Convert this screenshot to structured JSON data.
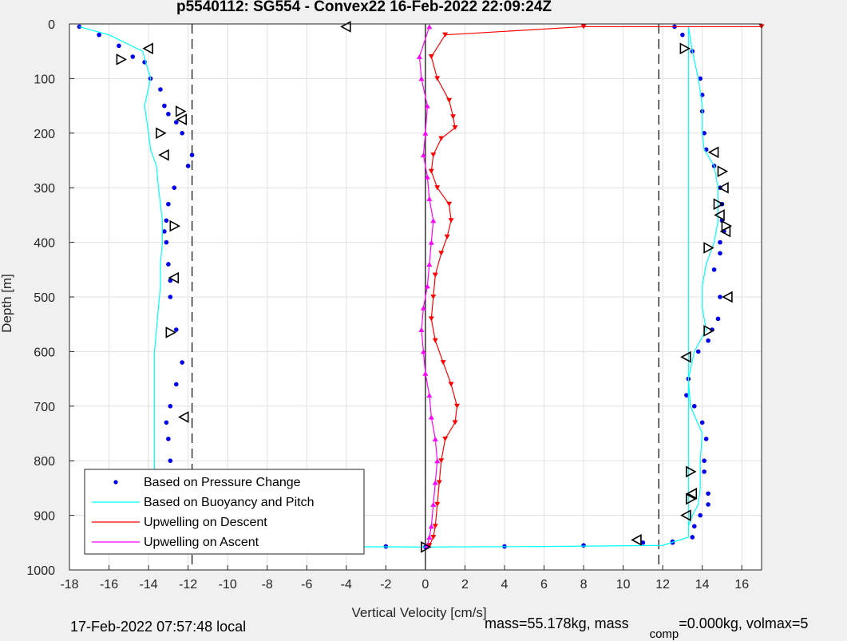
{
  "chart_data": {
    "type": "scatter",
    "title": "p5540112: SG554 - Convex22 16-Feb-2022 22:09:24Z",
    "xlabel": "Vertical Velocity [cm/s]",
    "ylabel": "Depth [m]",
    "xlim": [
      -18,
      17
    ],
    "ylim": [
      0,
      1000
    ],
    "y_reversed": true,
    "x_ticks": [
      -18,
      -16,
      -14,
      -12,
      -10,
      -8,
      -6,
      -4,
      -2,
      0,
      2,
      4,
      6,
      8,
      10,
      12,
      14,
      16
    ],
    "y_ticks": [
      0,
      100,
      200,
      300,
      400,
      500,
      600,
      700,
      800,
      900,
      1000
    ],
    "grid": true,
    "legend_position": "bottom-left",
    "reference_lines": [
      {
        "style": "dashed",
        "color": "#000000",
        "x": -11.8
      },
      {
        "style": "dashed",
        "color": "#000000",
        "x": 11.8
      },
      {
        "style": "solid",
        "color": "#000000",
        "x": 0
      }
    ],
    "series": [
      {
        "name": "Based on Pressure Change",
        "marker": "dot",
        "color": "#0000ee",
        "x": [
          -17.5,
          -16.5,
          -15.5,
          -14.8,
          -14.2,
          -13.9,
          -13.4,
          -13.2,
          -13.0,
          -12.6,
          -12.3,
          -11.8,
          -12.0,
          -12.7,
          -13.0,
          -13.1,
          -13.2,
          -13.1,
          -13.0,
          -12.9,
          -12.9,
          -12.6,
          -12.3,
          -12.6,
          -12.9,
          -13.1,
          -13.0,
          -12.9,
          -12.9,
          -12.9,
          -13.2,
          -14.0,
          -10.0,
          -6.0,
          -2.0,
          0.0,
          4.0,
          8.0,
          11.0,
          12.5,
          12.6,
          13.0,
          13.5,
          13.9,
          14.0,
          14.0,
          14.1,
          14.2,
          14.6,
          14.9,
          15.0,
          15.0,
          15.1,
          14.9,
          14.9,
          14.6,
          14.9,
          14.8,
          14.5,
          14.3,
          13.8,
          13.3,
          13.2,
          13.6,
          14.0,
          14.2,
          14.1,
          14.1,
          14.3,
          14.3,
          13.9,
          13.6,
          13.5,
          12.5
        ],
        "y": [
          5,
          20,
          40,
          60,
          70,
          100,
          120,
          150,
          165,
          180,
          200,
          240,
          260,
          300,
          330,
          360,
          380,
          400,
          440,
          470,
          500,
          560,
          620,
          660,
          700,
          730,
          760,
          800,
          850,
          900,
          940,
          955,
          955,
          955,
          957,
          958,
          957,
          955,
          950,
          948,
          5,
          20,
          50,
          100,
          130,
          160,
          200,
          230,
          260,
          300,
          330,
          360,
          380,
          400,
          420,
          450,
          500,
          540,
          560,
          580,
          600,
          650,
          680,
          700,
          730,
          760,
          800,
          820,
          860,
          880,
          900,
          920,
          940,
          950
        ]
      },
      {
        "name": "Based on Buoyancy and Pitch",
        "marker": "line",
        "color": "#00ffff",
        "x": [
          -17.5,
          -16.0,
          -14.3,
          -13.9,
          -14.2,
          -14.0,
          -13.9,
          -13.6,
          -13.5,
          -13.4,
          -13.3,
          -13.3,
          -13.4,
          -13.4,
          -13.5,
          -13.6,
          -13.7,
          -13.7,
          -13.7,
          -13.7,
          -13.7,
          -13.7,
          -13.6,
          -12.0,
          -6.0,
          0.0,
          6.0,
          12.0,
          13.3,
          13.3,
          13.5,
          13.8,
          14.0,
          14.0,
          14.1,
          14.6,
          14.8,
          14.8,
          14.6,
          14.2,
          14.0,
          14.0,
          14.2,
          13.6,
          13.3,
          13.4,
          14.0,
          13.9,
          13.9,
          13.8,
          13.5,
          13.3,
          13.3
        ],
        "y": [
          5,
          20,
          50,
          100,
          150,
          200,
          230,
          260,
          300,
          330,
          360,
          400,
          440,
          480,
          520,
          560,
          600,
          650,
          700,
          750,
          800,
          850,
          900,
          955,
          957,
          958,
          957,
          955,
          940,
          5,
          50,
          100,
          150,
          200,
          230,
          260,
          300,
          360,
          400,
          440,
          480,
          520,
          560,
          600,
          650,
          700,
          750,
          800,
          850,
          880,
          900,
          920,
          940
        ]
      },
      {
        "name": "Upwelling on Descent",
        "marker": "triangle-down",
        "color": "#ff0000",
        "x": [
          17.0,
          8.0,
          1.0,
          0.3,
          0.6,
          1.2,
          1.4,
          1.5,
          0.8,
          0.4,
          0.3,
          0.6,
          1.2,
          1.3,
          1.1,
          0.8,
          0.5,
          0.4,
          0.3,
          0.5,
          0.9,
          1.3,
          1.6,
          1.5,
          1.0,
          0.8,
          0.7,
          0.6,
          0.5,
          0.4,
          0.2
        ],
        "y": [
          5,
          5,
          20,
          60,
          100,
          140,
          170,
          190,
          210,
          240,
          270,
          300,
          330,
          360,
          390,
          420,
          460,
          500,
          540,
          580,
          620,
          660,
          700,
          730,
          760,
          800,
          840,
          880,
          920,
          940,
          955
        ]
      },
      {
        "name": "Upwelling on Ascent",
        "marker": "triangle-up",
        "color": "#ff00ff",
        "x": [
          0.2,
          -0.3,
          -0.2,
          0.1,
          0.0,
          -0.1,
          0.1,
          0.2,
          0.4,
          0.3,
          0.2,
          0.1,
          -0.1,
          -0.2,
          -0.1,
          0.0,
          0.2,
          0.3,
          0.5,
          0.6,
          0.5,
          0.4,
          0.3,
          0.2,
          0.1
        ],
        "y": [
          5,
          60,
          100,
          150,
          200,
          240,
          280,
          320,
          360,
          400,
          440,
          480,
          520,
          560,
          600,
          640,
          680,
          720,
          760,
          800,
          840,
          880,
          920,
          940,
          955
        ]
      }
    ],
    "annotation_markers": {
      "color": "#000000",
      "marker": "triangle-outline",
      "x": [
        -15.4,
        -14.0,
        -12.4,
        -12.3,
        -13.4,
        -13.2,
        -12.7,
        -12.7,
        -12.9,
        -12.2,
        -12.9,
        -4.0,
        0.0,
        10.7,
        13.1,
        14.6,
        15.0,
        15.1,
        14.8,
        14.9,
        15.2,
        15.2,
        14.3,
        15.3,
        14.3,
        13.2,
        13.4,
        13.5,
        13.4,
        13.2
      ],
      "y": [
        65,
        45,
        160,
        175,
        200,
        240,
        370,
        465,
        565,
        720,
        955,
        5,
        958,
        945,
        45,
        235,
        270,
        300,
        330,
        350,
        370,
        380,
        410,
        500,
        562,
        610,
        820,
        860,
        870,
        900
      ]
    }
  },
  "legend": {
    "items": [
      {
        "label": "Based on Pressure Change",
        "color": "#0000ee",
        "marker": "dot"
      },
      {
        "label": "Based on Buoyancy and Pitch",
        "color": "#00ffff",
        "marker": "line"
      },
      {
        "label": "Upwelling on Descent",
        "color": "#ff0000",
        "marker": "line"
      },
      {
        "label": "Upwelling on Ascent",
        "color": "#ff00ff",
        "marker": "line"
      }
    ]
  },
  "footer": {
    "timestamp": "17-Feb-2022 07:57:48 local",
    "mass_text": "mass=55.178kg, mass",
    "comp_subscript": "comp",
    "volmax_text": "=0.000kg, volmax=5"
  },
  "colors": {
    "background": "#f0f0f0",
    "plot_area": "#ffffff",
    "grid": "#e0e0e0",
    "axis": "#262626"
  }
}
